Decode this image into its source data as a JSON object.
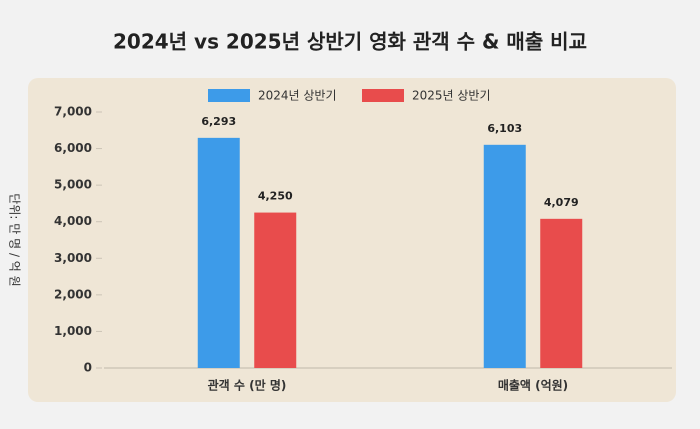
{
  "chart_data": {
    "type": "bar",
    "title": "2024년 vs 2025년 상반기 영화 관객 수 & 매출 비교",
    "y_label": "단위: 만 명 / 억 원",
    "categories": [
      "관객 수 (만 명)",
      "매출액 (억원)"
    ],
    "series": [
      {
        "name": "2024년 상반기",
        "color": "#3d9be9",
        "values": [
          6293,
          6103
        ],
        "value_labels": [
          "6,293",
          "6,103"
        ]
      },
      {
        "name": "2025년 상반기",
        "color": "#e84c4c",
        "values": [
          4250,
          4079
        ],
        "value_labels": [
          "4,250",
          "4,079"
        ]
      }
    ],
    "ylim": [
      0,
      7000
    ],
    "yticks": [
      0,
      {
        "value": 1000,
        "label": "1,000"
      },
      {
        "value": 2000,
        "label": "2,000"
      },
      {
        "value": 3000,
        "label": "3,000"
      },
      {
        "value": 4000,
        "label": "4,000"
      },
      {
        "value": 5000,
        "label": "5,000"
      },
      {
        "value": 6000,
        "label": "6,000"
      },
      {
        "value": 7000,
        "label": "7,000"
      }
    ],
    "legend": "top"
  }
}
